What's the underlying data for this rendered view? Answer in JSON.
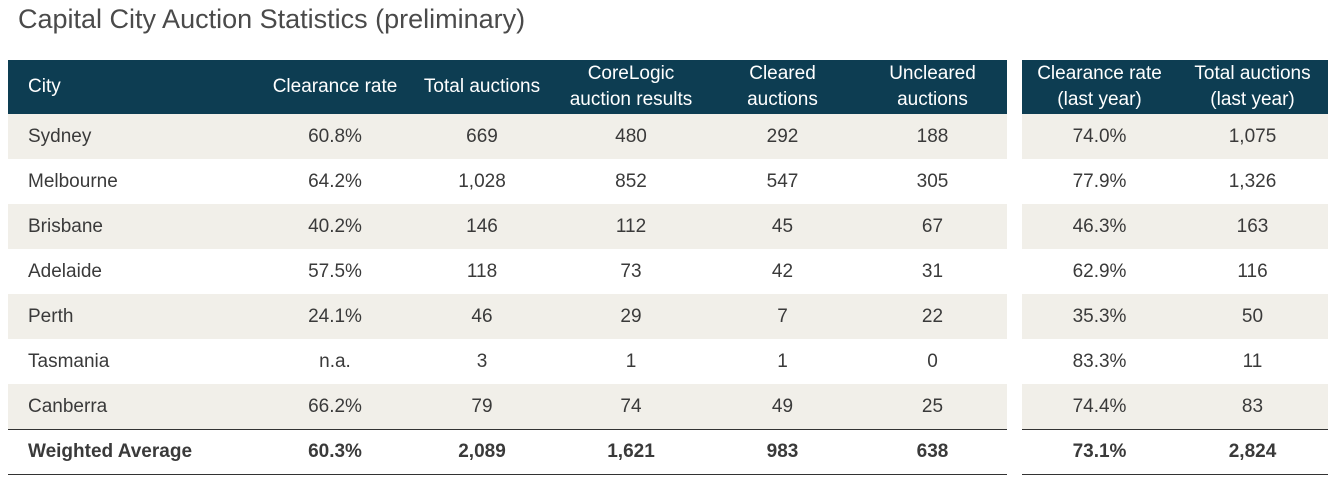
{
  "title": "Capital City Auction Statistics (preliminary)",
  "main_table": {
    "headers": [
      "City",
      "Clearance rate",
      "Total auctions",
      "CoreLogic\nauction results",
      "Cleared\nauctions",
      "Uncleared\nauctions"
    ],
    "rows": [
      [
        "Sydney",
        "60.8%",
        "669",
        "480",
        "292",
        "188"
      ],
      [
        "Melbourne",
        "64.2%",
        "1,028",
        "852",
        "547",
        "305"
      ],
      [
        "Brisbane",
        "40.2%",
        "146",
        "112",
        "45",
        "67"
      ],
      [
        "Adelaide",
        "57.5%",
        "118",
        "73",
        "42",
        "31"
      ],
      [
        "Perth",
        "24.1%",
        "46",
        "29",
        "7",
        "22"
      ],
      [
        "Tasmania",
        "n.a.",
        "3",
        "1",
        "1",
        "0"
      ],
      [
        "Canberra",
        "66.2%",
        "79",
        "74",
        "49",
        "25"
      ]
    ],
    "footer": [
      "Weighted Average",
      "60.3%",
      "2,089",
      "1,621",
      "983",
      "638"
    ]
  },
  "side_table": {
    "headers": [
      "Clearance rate\n(last year)",
      "Total auctions\n(last year)"
    ],
    "rows": [
      [
        "74.0%",
        "1,075"
      ],
      [
        "77.9%",
        "1,326"
      ],
      [
        "46.3%",
        "163"
      ],
      [
        "62.9%",
        "116"
      ],
      [
        "35.3%",
        "50"
      ],
      [
        "83.3%",
        "11"
      ],
      [
        "74.4%",
        "83"
      ]
    ],
    "footer": [
      "73.1%",
      "2,824"
    ]
  }
}
